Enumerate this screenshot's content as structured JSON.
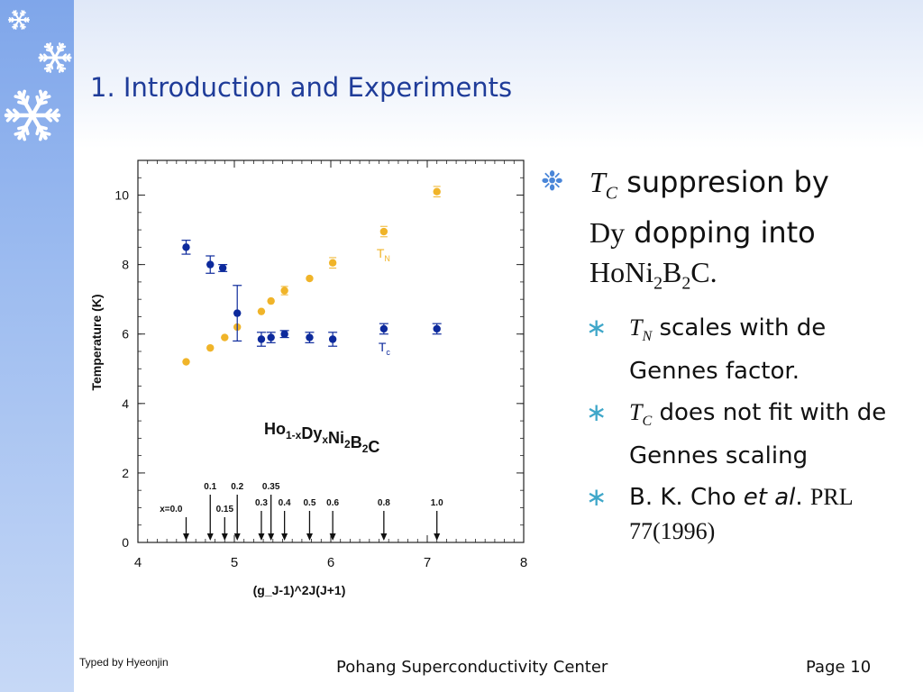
{
  "slide": {
    "title": "1. Introduction and Experiments",
    "footer_left": "Typed by Hyeonjin",
    "footer_center": "Pohang Superconductivity Center",
    "footer_right": "Page 10"
  },
  "colors": {
    "band": "#8fb1ee",
    "title": "#1f3c99",
    "tn": "#f0b429",
    "tc": "#0d2a9c",
    "bullet_main": "#4a86d8",
    "bullet_sub": "#3fa7c9"
  },
  "icons": [
    "snowflake-icon",
    "asterisk-bullet-icon"
  ],
  "bullets": {
    "main": {
      "sym": "T",
      "sub": "C",
      "text1": " suppresion by",
      "el1": "Dy",
      "text2": " dopping into",
      "compound": "HoNi",
      "n1": "2",
      "b": "B",
      "n2": "2",
      "c": "C."
    },
    "items": [
      {
        "sym": "T",
        "sub": "N",
        "text": " scales with de Gennes factor."
      },
      {
        "sym": "T",
        "sub": "C",
        "text": " does not fit with de Gennes scaling"
      },
      {
        "text": "B. K. Cho ",
        "em": "et al",
        "end": ". ",
        "ref": "PRL 77(1996)"
      }
    ]
  },
  "chart_data": {
    "type": "scatter",
    "ylabel": "Temperature (K)",
    "xlabel": "(g_J-1)^2J(J+1)",
    "xlim": [
      4,
      8
    ],
    "ylim": [
      0,
      11
    ],
    "xticks": [
      "4",
      "5",
      "6",
      "7",
      "8"
    ],
    "yticks": [
      "0",
      "2",
      "4",
      "6",
      "8",
      "10"
    ],
    "compound_label": {
      "a": "Ho",
      "s1": "1-x",
      "b": "Dy",
      "s2": "x",
      "c": "Ni",
      "s3": "2",
      "d": "B",
      "s4": "2",
      "e": "C"
    },
    "series": [
      {
        "name": "T",
        "sub": "N",
        "points": [
          [
            4.5,
            5.2
          ],
          [
            4.75,
            5.6
          ],
          [
            4.9,
            5.9
          ],
          [
            5.03,
            6.2
          ],
          [
            5.28,
            6.65
          ],
          [
            5.38,
            6.95
          ],
          [
            5.52,
            7.25
          ],
          [
            5.78,
            7.6
          ],
          [
            6.02,
            8.05
          ],
          [
            6.55,
            8.95
          ],
          [
            7.1,
            10.1
          ]
        ]
      },
      {
        "name": "T",
        "sub": "c",
        "points": [
          [
            4.5,
            8.5
          ],
          [
            4.75,
            8.0
          ],
          [
            4.88,
            7.9
          ],
          [
            5.03,
            6.6
          ],
          [
            5.28,
            5.85
          ],
          [
            5.38,
            5.9
          ],
          [
            5.52,
            6.0
          ],
          [
            5.78,
            5.9
          ],
          [
            6.02,
            5.85
          ],
          [
            6.55,
            6.15
          ],
          [
            7.1,
            6.15
          ]
        ],
        "errors": [
          0.2,
          0.25,
          0.1,
          0.8,
          0.2,
          0.15,
          0.1,
          0.15,
          0.2,
          0.15,
          0.15
        ]
      }
    ],
    "annotations": [
      {
        "label": "x=0.0",
        "x": 4.5,
        "row": 2
      },
      {
        "label": "0.1",
        "x": 4.75,
        "row": 0
      },
      {
        "label": "0.15",
        "x": 4.9,
        "row": 2
      },
      {
        "label": "0.2",
        "x": 5.03,
        "row": 0
      },
      {
        "label": "0.35",
        "x": 5.38,
        "row": 0
      },
      {
        "label": "0.3",
        "x": 5.28,
        "row": 1
      },
      {
        "label": "0.4",
        "x": 5.52,
        "row": 1
      },
      {
        "label": "0.5",
        "x": 5.78,
        "row": 1
      },
      {
        "label": "0.6",
        "x": 6.02,
        "row": 1
      },
      {
        "label": "0.8",
        "x": 6.55,
        "row": 1
      },
      {
        "label": "1.0",
        "x": 7.1,
        "row": 1
      }
    ]
  }
}
